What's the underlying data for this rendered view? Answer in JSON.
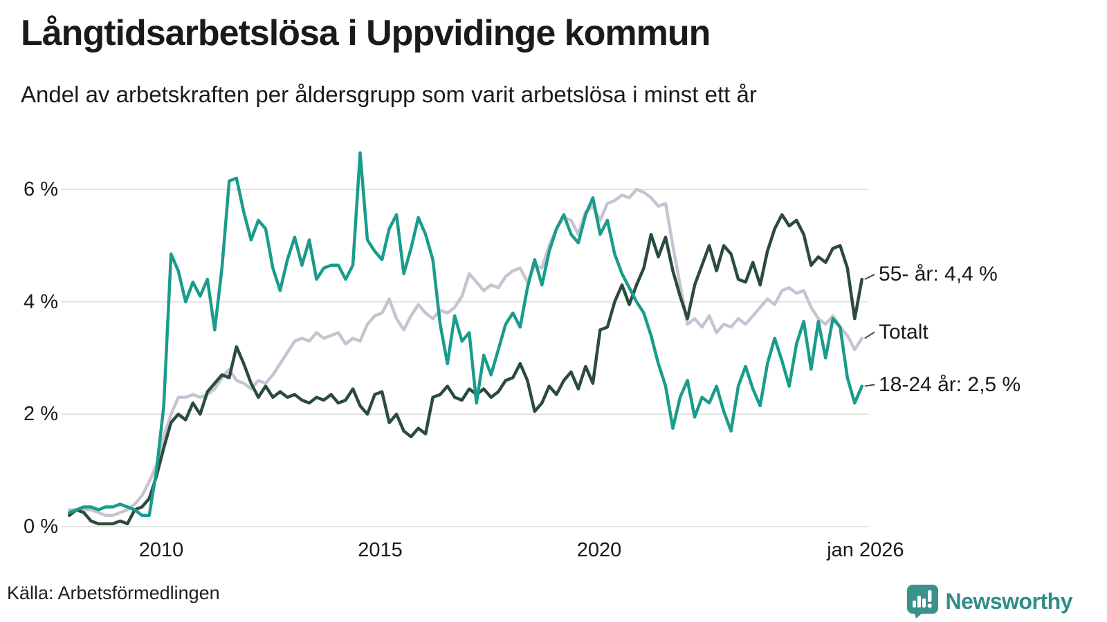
{
  "colors": {
    "teal": "#1a9c8c",
    "dark_green": "#2b4a40",
    "light_gray": "#c6c4d1",
    "grid": "#e2e2e2",
    "text": "#1a1a1a",
    "brand_teal": "#2e8e86",
    "brand_icon": "#39938b"
  },
  "footer": {
    "source": "Källa: Arbetsförmedlingen",
    "brand_name": "Newsworthy"
  },
  "chart_data": {
    "type": "line",
    "title": "Långtidsarbetslösa i Uppvidinge kommun",
    "subtitle": "Andel av arbetskraften per åldersgrupp som varit arbetslösa i minst ett år",
    "xlabel": "",
    "ylabel": "",
    "y_unit": "%",
    "grid": true,
    "legend_position": "right-edge-annotations",
    "xlim": [
      2007.8,
      2026.3
    ],
    "ylim": [
      0,
      6.9
    ],
    "x_start": 2007.9,
    "x_step": 0.16606,
    "x_ticks": [
      {
        "label": "2010",
        "year": 2010
      },
      {
        "label": "2015",
        "year": 2015
      },
      {
        "label": "2020",
        "year": 2020
      },
      {
        "label": "jan 2026",
        "year": 2026.08
      }
    ],
    "y_ticks": [
      {
        "label": "0 %",
        "value": 0
      },
      {
        "label": "2 %",
        "value": 2
      },
      {
        "label": "4 %",
        "value": 4
      },
      {
        "label": "6 %",
        "value": 6
      }
    ],
    "series": [
      {
        "name": "Totalt",
        "color": "#c6c4d1",
        "end_label": "Totalt",
        "end_value": 3.35,
        "values": [
          0.3,
          0.3,
          0.3,
          0.3,
          0.25,
          0.2,
          0.2,
          0.25,
          0.3,
          0.4,
          0.55,
          0.8,
          1.1,
          1.6,
          2.0,
          2.3,
          2.3,
          2.35,
          2.3,
          2.35,
          2.45,
          2.65,
          2.8,
          2.6,
          2.55,
          2.45,
          2.6,
          2.55,
          2.7,
          2.9,
          3.1,
          3.3,
          3.35,
          3.3,
          3.45,
          3.35,
          3.4,
          3.45,
          3.25,
          3.35,
          3.3,
          3.6,
          3.75,
          3.8,
          4.05,
          3.7,
          3.5,
          3.75,
          3.95,
          3.8,
          3.7,
          3.85,
          3.8,
          3.9,
          4.1,
          4.5,
          4.35,
          4.2,
          4.3,
          4.25,
          4.45,
          4.55,
          4.6,
          4.35,
          4.65,
          4.6,
          5.0,
          5.3,
          5.5,
          5.45,
          5.2,
          5.6,
          5.7,
          5.45,
          5.75,
          5.8,
          5.9,
          5.85,
          6.0,
          5.95,
          5.85,
          5.7,
          5.75,
          5.0,
          4.3,
          3.6,
          3.7,
          3.55,
          3.75,
          3.45,
          3.6,
          3.55,
          3.7,
          3.6,
          3.75,
          3.9,
          4.05,
          3.95,
          4.2,
          4.25,
          4.15,
          4.2,
          3.9,
          3.7,
          3.6,
          3.75,
          3.55,
          3.4,
          3.15,
          3.35
        ]
      },
      {
        "name": "55- år",
        "color": "#2b4a40",
        "end_label": "55- år: 4,4 %",
        "end_value": 4.4,
        "values": [
          0.2,
          0.3,
          0.25,
          0.1,
          0.05,
          0.05,
          0.05,
          0.1,
          0.05,
          0.3,
          0.35,
          0.5,
          0.9,
          1.4,
          1.85,
          2.0,
          1.9,
          2.2,
          2.0,
          2.4,
          2.55,
          2.7,
          2.65,
          3.2,
          2.9,
          2.55,
          2.3,
          2.5,
          2.3,
          2.4,
          2.3,
          2.35,
          2.25,
          2.2,
          2.3,
          2.25,
          2.35,
          2.2,
          2.25,
          2.45,
          2.15,
          2.0,
          2.35,
          2.4,
          1.85,
          2.0,
          1.7,
          1.6,
          1.75,
          1.65,
          2.3,
          2.35,
          2.5,
          2.3,
          2.25,
          2.45,
          2.35,
          2.45,
          2.3,
          2.4,
          2.6,
          2.65,
          2.9,
          2.6,
          2.05,
          2.2,
          2.5,
          2.35,
          2.6,
          2.75,
          2.45,
          2.85,
          2.55,
          3.5,
          3.55,
          4.0,
          4.3,
          3.95,
          4.3,
          4.6,
          5.2,
          4.8,
          5.15,
          4.55,
          4.1,
          3.7,
          4.3,
          4.65,
          5.0,
          4.55,
          5.0,
          4.85,
          4.4,
          4.35,
          4.7,
          4.3,
          4.9,
          5.3,
          5.55,
          5.35,
          5.45,
          5.2,
          4.65,
          4.8,
          4.7,
          4.95,
          5.0,
          4.6,
          3.7,
          4.4
        ]
      },
      {
        "name": "18-24 år",
        "color": "#1a9c8c",
        "end_label": "18-24 år: 2,5 %",
        "end_value": 2.5,
        "values": [
          0.25,
          0.3,
          0.35,
          0.35,
          0.3,
          0.35,
          0.35,
          0.4,
          0.35,
          0.3,
          0.2,
          0.2,
          1.0,
          2.15,
          4.85,
          4.55,
          4.0,
          4.35,
          4.1,
          4.4,
          3.5,
          4.6,
          6.15,
          6.2,
          5.6,
          5.1,
          5.45,
          5.3,
          4.6,
          4.2,
          4.75,
          5.15,
          4.65,
          5.1,
          4.4,
          4.6,
          4.65,
          4.65,
          4.4,
          4.65,
          6.65,
          5.1,
          4.9,
          4.75,
          5.3,
          5.55,
          4.5,
          4.95,
          5.5,
          5.2,
          4.75,
          3.6,
          2.9,
          3.75,
          3.3,
          3.45,
          2.2,
          3.05,
          2.7,
          3.15,
          3.6,
          3.8,
          3.55,
          4.25,
          4.75,
          4.3,
          4.9,
          5.3,
          5.55,
          5.2,
          5.05,
          5.55,
          5.85,
          5.2,
          5.45,
          4.85,
          4.5,
          4.25,
          4.0,
          3.8,
          3.4,
          2.9,
          2.5,
          1.75,
          2.3,
          2.6,
          1.95,
          2.3,
          2.2,
          2.5,
          2.05,
          1.7,
          2.5,
          2.85,
          2.45,
          2.15,
          2.9,
          3.35,
          2.95,
          2.5,
          3.25,
          3.65,
          2.8,
          3.65,
          3.0,
          3.7,
          3.55,
          2.65,
          2.2,
          2.5
        ]
      }
    ]
  }
}
